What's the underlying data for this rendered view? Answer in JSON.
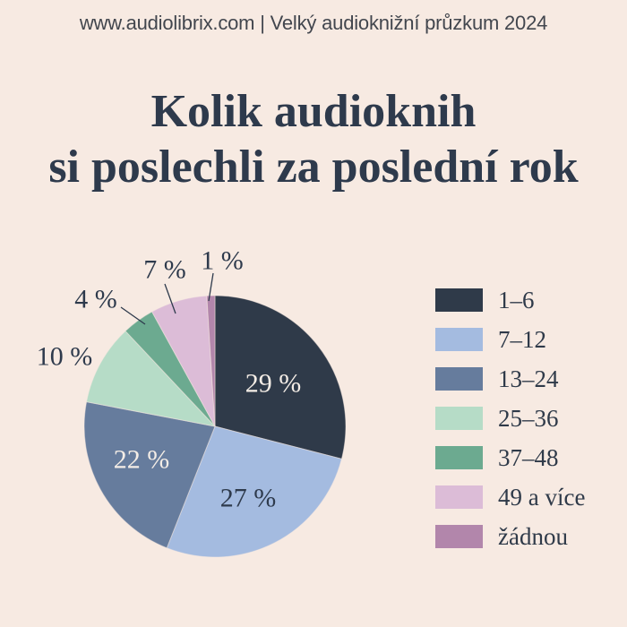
{
  "page": {
    "background": "#f7eae2"
  },
  "header": {
    "text": "www.audiolibrix.com | Velký audioknižní průzkum 2024"
  },
  "title": {
    "line1": "Kolik audioknih",
    "line2": "si poslechli za poslední rok"
  },
  "chart_data": {
    "type": "pie",
    "title": "Kolik audioknih si poslechli za poslední rok",
    "unit": "%",
    "start_angle_deg": 0,
    "direction": "clockwise",
    "legend_position": "right",
    "slices": [
      {
        "category": "1–6",
        "value": 29,
        "label": "29 %",
        "color": "#2f3a49"
      },
      {
        "category": "7–12",
        "value": 27,
        "label": "27 %",
        "color": "#a4bbe0"
      },
      {
        "category": "13–24",
        "value": 22,
        "label": "22 %",
        "color": "#667c9d"
      },
      {
        "category": "25–36",
        "value": 10,
        "label": "10 %",
        "color": "#b6dcc7"
      },
      {
        "category": "37–48",
        "value": 4,
        "label": "4 %",
        "color": "#6caa90"
      },
      {
        "category": "49 a více",
        "value": 7,
        "label": "7 %",
        "color": "#dcbcd7"
      },
      {
        "category": "žádnou",
        "value": 1,
        "label": "1 %",
        "color": "#b286ab"
      }
    ]
  },
  "colors": {
    "background": "#f7eae2",
    "title_text": "#2e3a4c",
    "header_text": "#42464e",
    "label_dark": "#2e3a4c",
    "label_light": "#f4ede6"
  }
}
